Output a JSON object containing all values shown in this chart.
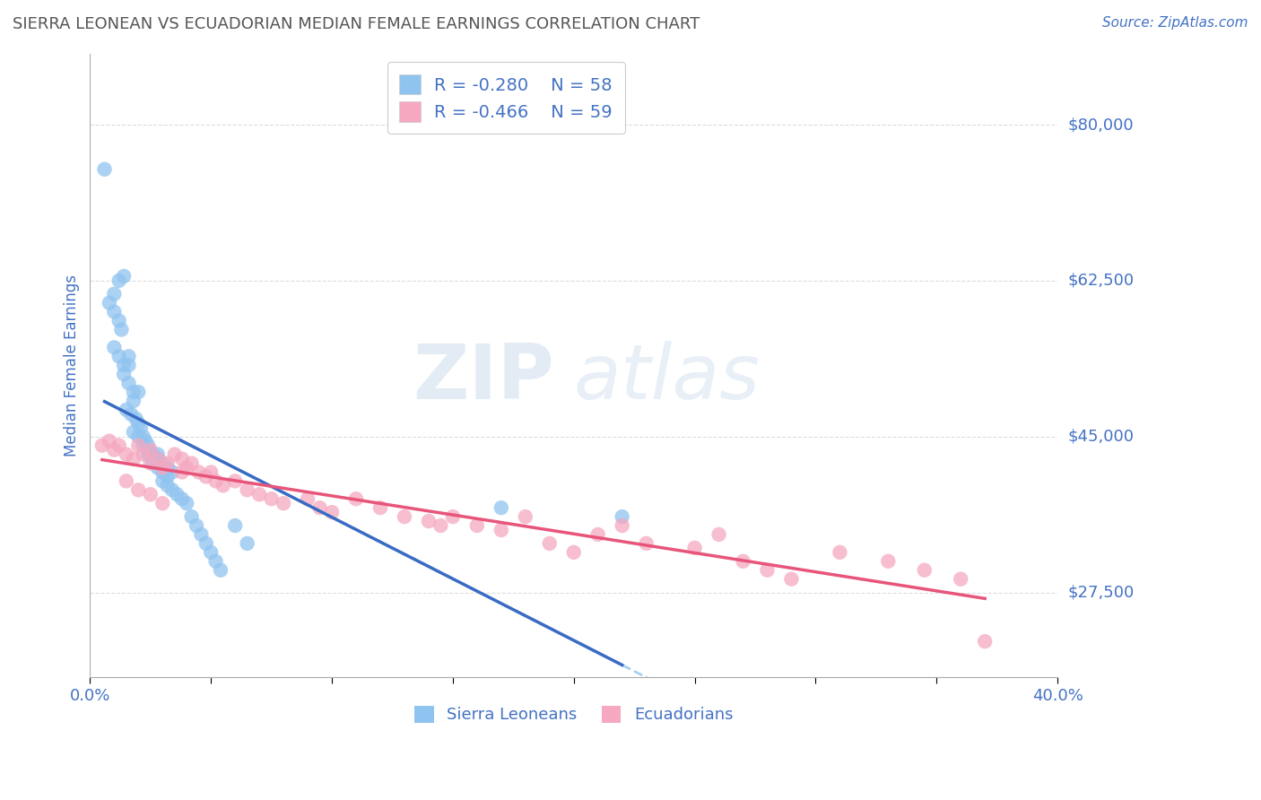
{
  "title": "SIERRA LEONEAN VS ECUADORIAN MEDIAN FEMALE EARNINGS CORRELATION CHART",
  "source": "Source: ZipAtlas.com",
  "ylabel": "Median Female Earnings",
  "yticks": [
    27500,
    45000,
    62500,
    80000
  ],
  "ytick_labels": [
    "$27,500",
    "$45,000",
    "$62,500",
    "$80,000"
  ],
  "xlim": [
    0.0,
    0.4
  ],
  "ylim": [
    18000,
    88000
  ],
  "watermark_line1": "ZIP",
  "watermark_line2": "atlas",
  "sierra_R": -0.28,
  "sierra_N": 58,
  "ecuador_R": -0.466,
  "ecuador_N": 59,
  "sierra_color": "#90C4F0",
  "ecuador_color": "#F5A8C0",
  "sierra_line_color": "#3A6BC4",
  "ecuador_line_color": "#E8557A",
  "dashed_line_color": "#90C4F0",
  "legend_text_color": "#4472C4",
  "title_color": "#555555",
  "axis_label_color": "#4472C4",
  "source_color": "#4472C4",
  "background_color": "#FFFFFF",
  "grid_color": "#DDDDDD",
  "sierra_scatter_x": [
    0.006,
    0.012,
    0.014,
    0.008,
    0.01,
    0.01,
    0.012,
    0.013,
    0.01,
    0.012,
    0.014,
    0.016,
    0.016,
    0.014,
    0.016,
    0.018,
    0.018,
    0.02,
    0.015,
    0.017,
    0.019,
    0.02,
    0.021,
    0.018,
    0.02,
    0.022,
    0.023,
    0.024,
    0.022,
    0.024,
    0.024,
    0.026,
    0.028,
    0.026,
    0.028,
    0.03,
    0.032,
    0.03,
    0.032,
    0.034,
    0.036,
    0.038,
    0.04,
    0.042,
    0.044,
    0.046,
    0.048,
    0.05,
    0.052,
    0.054,
    0.06,
    0.065,
    0.17,
    0.22,
    0.028,
    0.03,
    0.032,
    0.034
  ],
  "sierra_scatter_y": [
    75000,
    62500,
    63000,
    60000,
    61000,
    59000,
    58000,
    57000,
    55000,
    54000,
    53000,
    53000,
    54000,
    52000,
    51000,
    50000,
    49000,
    50000,
    48000,
    47500,
    47000,
    46500,
    46000,
    45500,
    45000,
    45000,
    44500,
    44000,
    44000,
    43500,
    43000,
    43000,
    42500,
    42000,
    41500,
    41000,
    40500,
    40000,
    39500,
    39000,
    38500,
    38000,
    37500,
    36000,
    35000,
    34000,
    33000,
    32000,
    31000,
    30000,
    35000,
    33000,
    37000,
    36000,
    43000,
    42000,
    41500,
    41000
  ],
  "ecuador_scatter_x": [
    0.005,
    0.008,
    0.01,
    0.012,
    0.015,
    0.018,
    0.02,
    0.022,
    0.025,
    0.025,
    0.028,
    0.03,
    0.032,
    0.035,
    0.038,
    0.038,
    0.04,
    0.042,
    0.045,
    0.048,
    0.05,
    0.052,
    0.055,
    0.06,
    0.065,
    0.07,
    0.075,
    0.08,
    0.09,
    0.095,
    0.1,
    0.11,
    0.12,
    0.13,
    0.14,
    0.145,
    0.15,
    0.16,
    0.17,
    0.18,
    0.19,
    0.2,
    0.21,
    0.22,
    0.23,
    0.25,
    0.26,
    0.27,
    0.28,
    0.29,
    0.31,
    0.33,
    0.345,
    0.36,
    0.015,
    0.02,
    0.025,
    0.03,
    0.37
  ],
  "ecuador_scatter_y": [
    44000,
    44500,
    43500,
    44000,
    43000,
    42500,
    44000,
    43000,
    43500,
    42000,
    42500,
    41500,
    42000,
    43000,
    42500,
    41000,
    41500,
    42000,
    41000,
    40500,
    41000,
    40000,
    39500,
    40000,
    39000,
    38500,
    38000,
    37500,
    38000,
    37000,
    36500,
    38000,
    37000,
    36000,
    35500,
    35000,
    36000,
    35000,
    34500,
    36000,
    33000,
    32000,
    34000,
    35000,
    33000,
    32500,
    34000,
    31000,
    30000,
    29000,
    32000,
    31000,
    30000,
    29000,
    40000,
    39000,
    38500,
    37500,
    22000
  ],
  "xtick_positions": [
    0.0,
    0.05,
    0.1,
    0.15,
    0.2,
    0.25,
    0.3,
    0.35,
    0.4
  ]
}
